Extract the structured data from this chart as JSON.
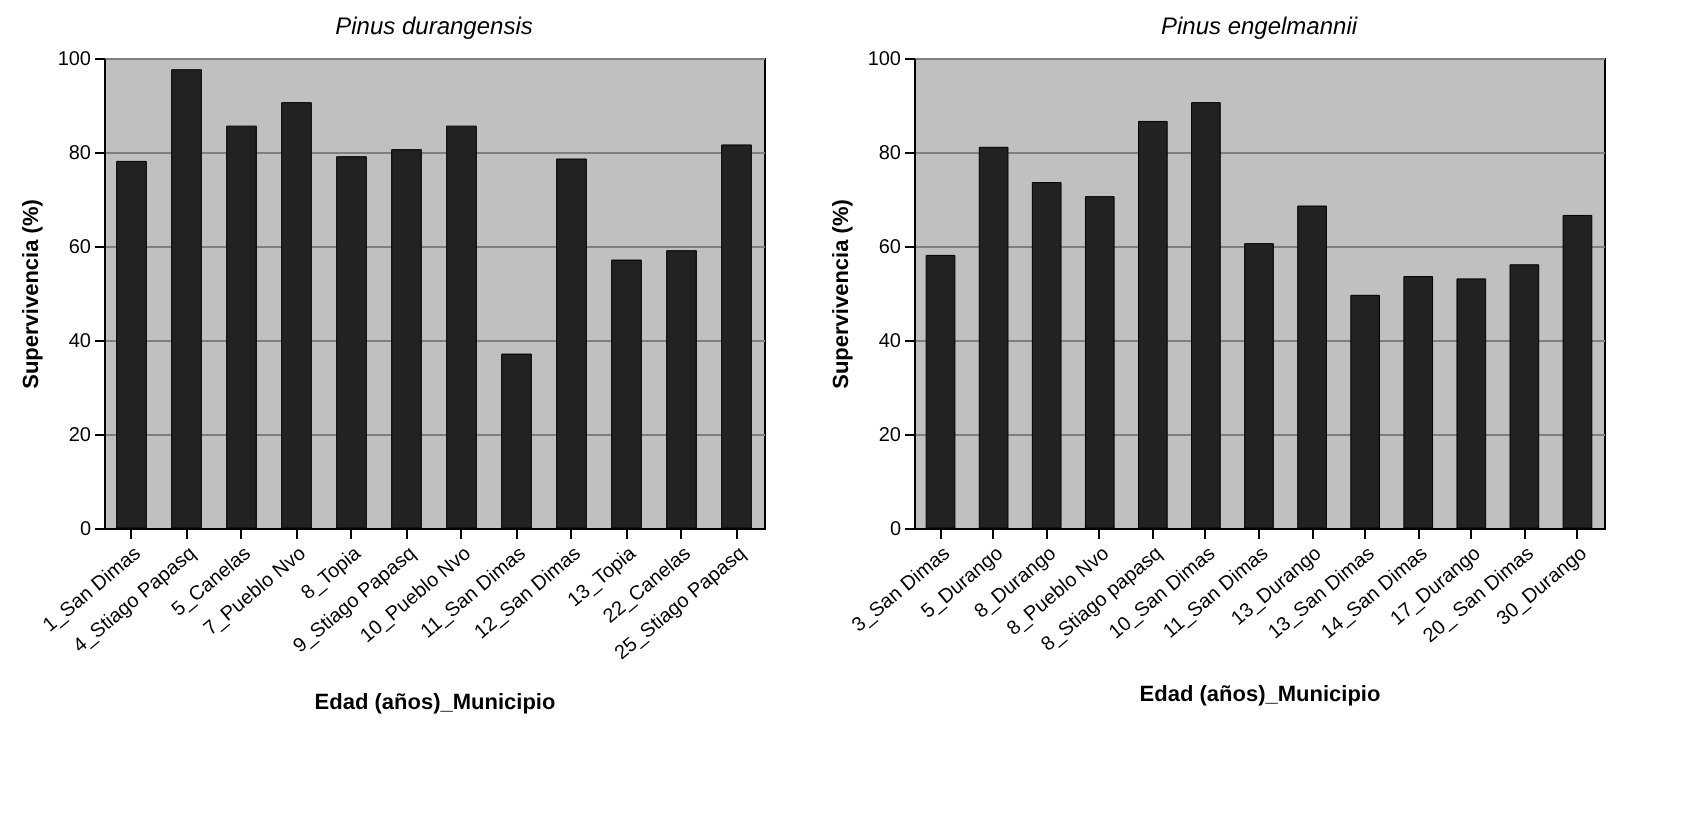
{
  "chart_data": [
    {
      "type": "bar",
      "title": "Pinus durangensis",
      "xlabel": "Edad (años)_Municipio",
      "ylabel": "Supervivencia (%)",
      "categories": [
        "1_San Dimas",
        "4_Stiago Papasq",
        "5_Canelas",
        "7_Pueblo Nvo",
        "8_Topia",
        "9_Stiago Papasq",
        "10_Pueblo Nvo",
        "11_San Dimas",
        "12_San Dimas",
        "13_Topia",
        "22_Canelas",
        "25_Stiago Papasq"
      ],
      "series": [
        {
          "color": "#222222",
          "values": [
            78,
            97.5,
            85.5,
            90.5,
            79,
            80.5,
            85.5,
            37,
            78.5,
            57,
            59,
            81.5
          ]
        }
      ],
      "ylim": [
        0,
        100
      ],
      "yticks": [
        0,
        20,
        40,
        60,
        80,
        100
      ],
      "grid": "y"
    },
    {
      "type": "bar",
      "title": "Pinus engelmannii",
      "xlabel": "Edad (años)_Municipio",
      "ylabel": "Supervivencia (%)",
      "categories": [
        "3_San Dimas",
        "5_Durango",
        "8_Durango",
        "8_Pueblo Nvo",
        "8_Stiago papasq",
        "10_San Dimas",
        "11_San Dimas",
        "13_Durango",
        "13_San Dimas",
        "14_San Dimas",
        "17_Durango",
        "20_ San Dimas",
        "30_Durango"
      ],
      "series": [
        {
          "color": "#222222",
          "values": [
            58,
            81,
            73.5,
            70.5,
            86.5,
            90.5,
            60.5,
            68.5,
            49.5,
            53.5,
            53,
            56,
            66.5
          ]
        }
      ],
      "ylim": [
        0,
        100
      ],
      "yticks": [
        0,
        20,
        40,
        60,
        80,
        100
      ],
      "grid": "y"
    }
  ]
}
